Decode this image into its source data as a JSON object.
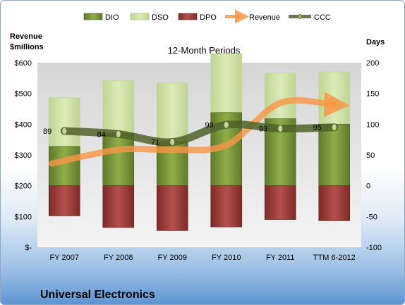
{
  "chart_data": {
    "type": "bar",
    "title": "12-Month Periods",
    "footer": "Universal Electronics",
    "left_axis_label_line1": "Revenue",
    "left_axis_label_line2": "$millions",
    "right_axis_label": "Days",
    "categories": [
      "FY 2007",
      "FY 2008",
      "FY 2009",
      "FY 2010",
      "FY 2011",
      "TTM 6-2012"
    ],
    "left_ylim": [
      0,
      600
    ],
    "left_ticks": [
      "$-",
      "$100",
      "$200",
      "$300",
      "$400",
      "$500",
      "$600"
    ],
    "right_ylim": [
      -100,
      200
    ],
    "right_ticks": [
      "-100",
      "-50",
      "0",
      "50",
      "100",
      "150",
      "200"
    ],
    "series": [
      {
        "name": "DIO",
        "values": [
          64,
          85,
          72,
          119,
          109,
          100
        ],
        "color": "#77933c"
      },
      {
        "name": "DSO",
        "values": [
          79,
          86,
          95,
          96,
          74,
          85
        ],
        "color": "#d7e4bd"
      },
      {
        "name": "DPO",
        "values": [
          -49,
          -68,
          -73,
          -67,
          -55,
          -57
        ],
        "color": "#953735"
      },
      {
        "name": "Revenue",
        "values": [
          272,
          317,
          317,
          332,
          469,
          463
        ],
        "color": "#f79646"
      },
      {
        "name": "CCC",
        "values": [
          89,
          84,
          71,
          99,
          93,
          95
        ],
        "color": "#4f6228"
      }
    ],
    "ccc_labels": [
      "89",
      "84",
      "71",
      "99",
      "93",
      "95"
    ],
    "legend": [
      "DIO",
      "DSO",
      "DPO",
      "Revenue",
      "CCC"
    ],
    "legend_placement": "top",
    "grid": false
  }
}
